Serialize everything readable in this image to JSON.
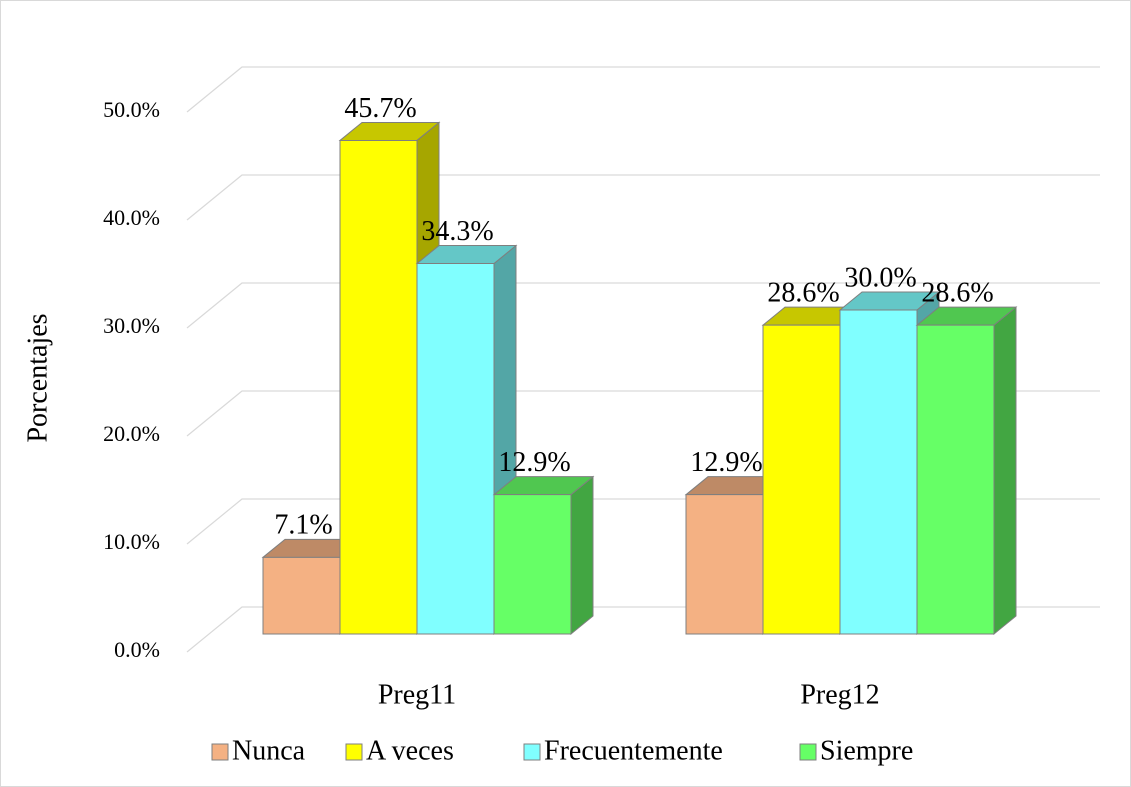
{
  "chart_data": {
    "type": "bar3d",
    "y_label": "Porcentajes",
    "categories": [
      "Preg11",
      "Preg12"
    ],
    "series": [
      {
        "name": "Nunca",
        "color": "#f4b183",
        "values": [
          7.1,
          12.9
        ],
        "value_labels": [
          "7.1%",
          "12.9%"
        ]
      },
      {
        "name": "A veces",
        "color": "#ffff00",
        "values": [
          45.7,
          28.6
        ],
        "value_labels": [
          "45.7%",
          "28.6%"
        ]
      },
      {
        "name": "Frecuentemente",
        "color": "#80ffff",
        "values": [
          34.3,
          30.0
        ],
        "value_labels": [
          "34.3%",
          "30.0%"
        ]
      },
      {
        "name": "Siempre",
        "color": "#66ff66",
        "values": [
          12.9,
          28.6
        ],
        "value_labels": [
          "12.9%",
          "28.6%"
        ]
      }
    ],
    "ylim": [
      0,
      50
    ],
    "yticks": [
      {
        "value": 0,
        "label": "0.0%"
      },
      {
        "value": 10,
        "label": "10.0%"
      },
      {
        "value": 20,
        "label": "20.0%"
      },
      {
        "value": 30,
        "label": "30.0%"
      },
      {
        "value": 40,
        "label": "40.0%"
      },
      {
        "value": 50,
        "label": "50.0%"
      }
    ],
    "grid": true,
    "legend": "bottom"
  }
}
